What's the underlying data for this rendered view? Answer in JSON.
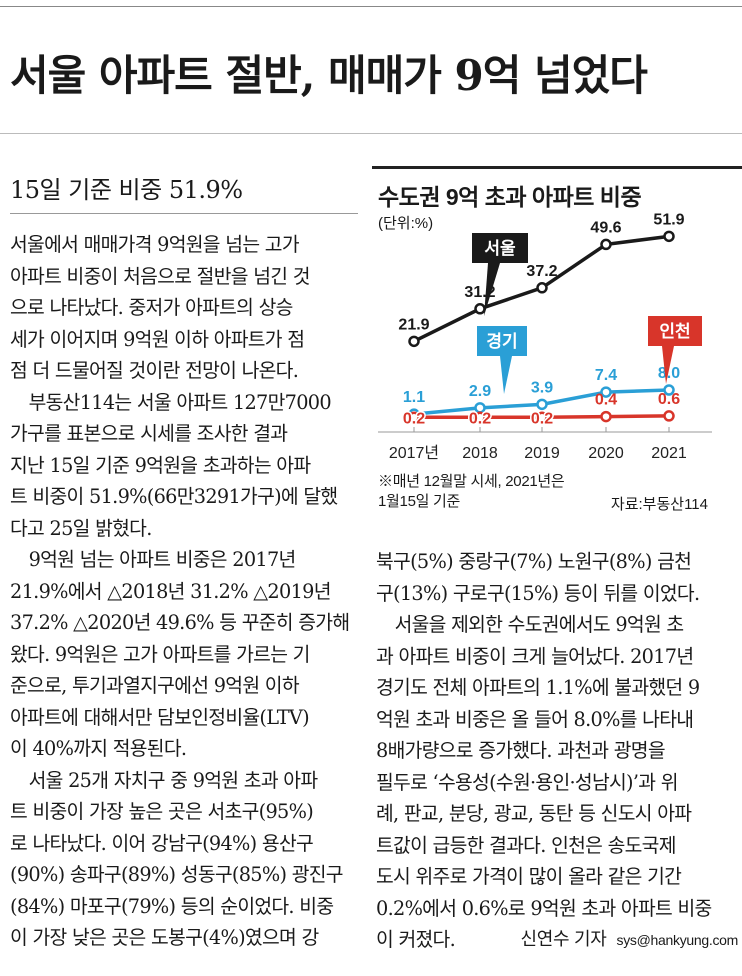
{
  "article": {
    "headline": "서울 아파트 절반, 매매가 9억 넘었다",
    "subheadline": "15일 기준 비중 51.9%",
    "left_lines": [
      "서울에서 매매가격 9억원을 넘는 고가",
      "아파트 비중이 처음으로 절반을 넘긴 것",
      "으로 나타났다. 중저가 아파트의 상승",
      "세가 이어지며 9억원 이하 아파트가 점",
      "점 더 드물어질 것이란 전망이 나온다.",
      "　부동산114는 서울 아파트 127만7000",
      "가구를 표본으로 시세를 조사한 결과",
      "지난 15일 기준 9억원을 초과하는 아파",
      "트 비중이 51.9%(66만3291가구)에 달했",
      "다고 25일 밝혔다.",
      "　9억원 넘는 아파트 비중은 2017년",
      "21.9%에서 △2018년 31.2% △2019년",
      "37.2% △2020년 49.6% 등 꾸준히 증가해",
      "왔다. 9억원은 고가 아파트를 가르는 기",
      "준으로, 투기과열지구에선 9억원 이하",
      "아파트에 대해서만 담보인정비율(LTV)",
      "이 40%까지 적용된다.",
      "　서울 25개 자치구 중 9억원 초과 아파",
      "트 비중이 가장 높은 곳은 서초구(95%)",
      "로 나타났다. 이어 강남구(94%) 용산구",
      "(90%) 송파구(89%) 성동구(85%) 광진구",
      "(84%) 마포구(79%) 등의 순이었다. 비중",
      "이 가장 낮은 곳은 도봉구(4%)였으며 강"
    ],
    "right_lines": [
      "북구(5%) 중랑구(7%) 노원구(8%) 금천",
      "구(13%) 구로구(15%) 등이 뒤를 이었다.",
      "　서울을 제외한 수도권에서도 9억원 초",
      "과 아파트 비중이 크게 늘어났다. 2017년",
      "경기도 전체 아파트의 1.1%에 불과했던 9",
      "억원 초과 비중은 올 들어 8.0%를 나타내",
      "8배가량으로 증가했다. 과천과 광명을",
      "필두로 ‘수용성(수원·용인·성남시)’과 위",
      "례, 판교, 분당, 광교, 동탄 등 신도시 아파",
      "트값이 급등한 결과다. 인천은 송도국제",
      "도시 위주로 가격이 많이 올라 같은 기간",
      "0.2%에서 0.6%로 9억원 초과 아파트 비중"
    ],
    "last_line": "이 커졌다.",
    "byline_name": "신연수 기자",
    "byline_email": "sys@hankyung.com"
  },
  "chart_data": {
    "type": "line",
    "title": "수도권 9억 초과 아파트 비중",
    "unit_label": "(단위:%)",
    "x": [
      "2017년",
      "2018",
      "2019",
      "2020",
      "2021"
    ],
    "ylim": [
      0,
      55
    ],
    "series": [
      {
        "name": "서울",
        "color": "#1a1a1a",
        "values": [
          21.9,
          31.2,
          37.2,
          49.6,
          51.9
        ],
        "labels": [
          "21.9",
          "31.2",
          "37.2",
          "49.6",
          "51.9"
        ]
      },
      {
        "name": "경기",
        "color": "#2a9fd6",
        "values": [
          1.1,
          2.9,
          3.9,
          7.4,
          8.0
        ],
        "labels": [
          "1.1",
          "2.9",
          "3.9",
          "7.4",
          "8.0"
        ]
      },
      {
        "name": "인천",
        "color": "#d8352a",
        "values": [
          0.2,
          0.2,
          0.2,
          0.4,
          0.6
        ],
        "labels": [
          "0.2",
          "0.2",
          "0.2",
          "0.4",
          "0.6"
        ]
      }
    ],
    "note_line1": "※매년 12월말 시세, 2021년은",
    "note_line2": "1월15일 기준",
    "source": "자료:부동산114"
  }
}
